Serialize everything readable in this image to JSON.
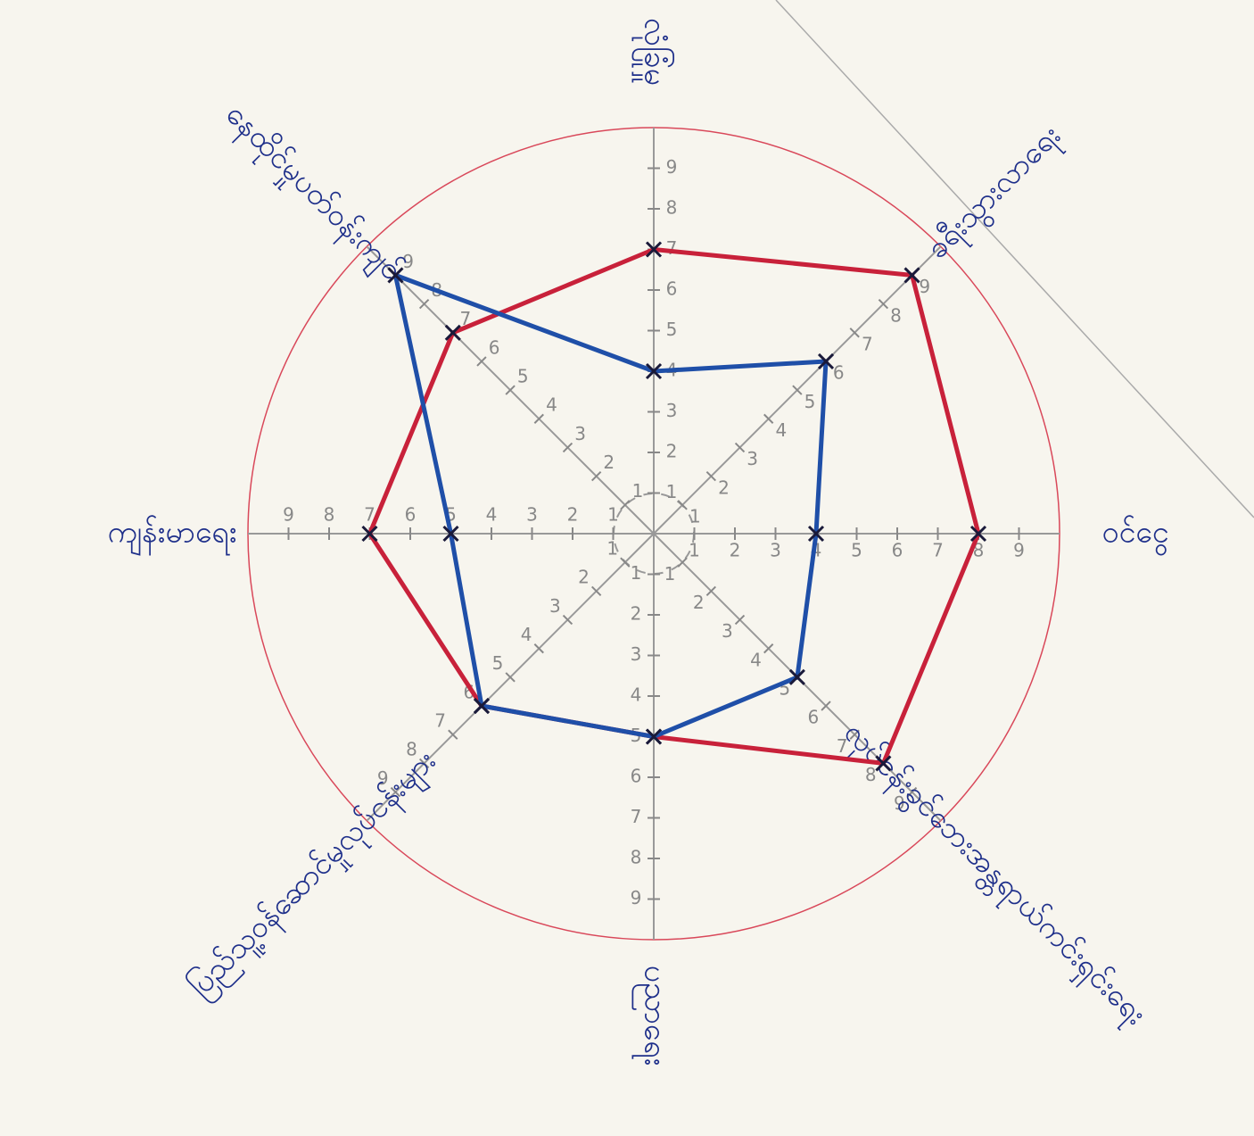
{
  "chart_data": {
    "type": "radar",
    "categories": [
      "လုံခြုံမှု",
      "ခရီးသွားလာရေး",
      "ဝင်ငွေ",
      "လုပ်ငန်းခွင်ဘေးအန္တရာယ်ကင်းရှင်းရေး",
      "ပညာရေး",
      "ပြည်သူ့ဝန်ဆောင်မှုလုပ်ငန်းများ",
      "ကျန်းမာရေး",
      "နေထိုင်မှုပတ်ဝန်းကျင်"
    ],
    "series": [
      {
        "color": "#c8213a",
        "values": [
          7,
          9,
          8,
          8,
          5,
          6,
          7,
          7
        ]
      },
      {
        "color": "#1f4fa8",
        "values": [
          4,
          6,
          4,
          5,
          5,
          6,
          5,
          9
        ]
      }
    ],
    "rlim": [
      0,
      10
    ],
    "rticks": [
      1,
      2,
      3,
      4,
      5,
      6,
      7,
      8,
      9
    ]
  }
}
